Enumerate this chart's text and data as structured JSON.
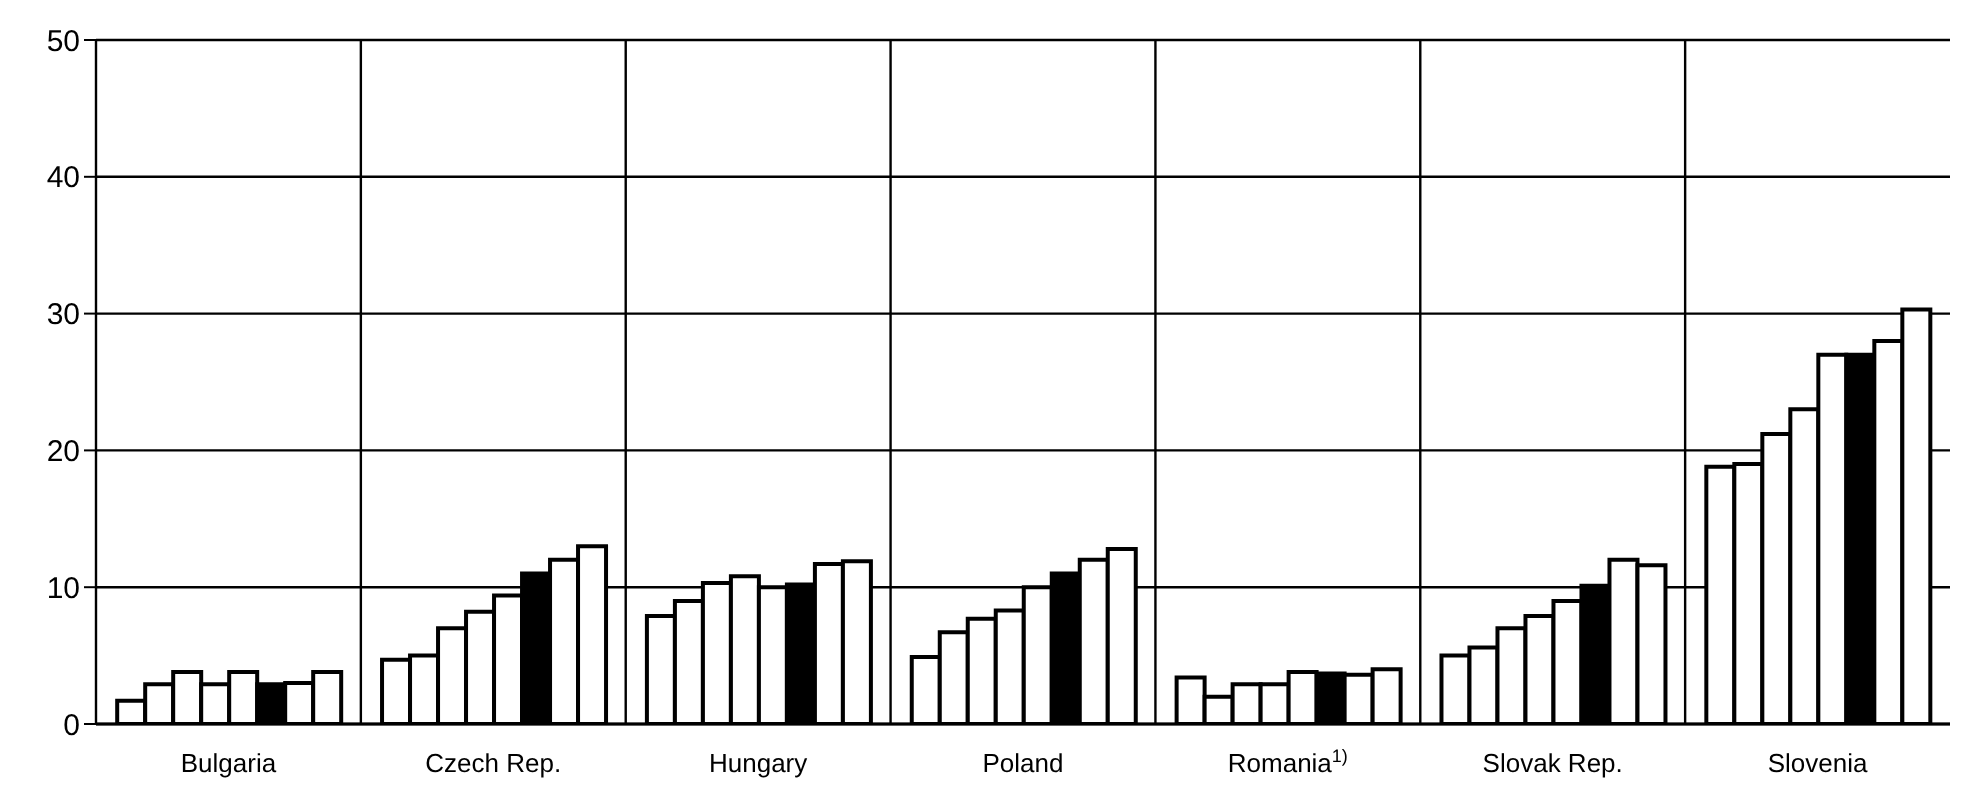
{
  "chart_data": {
    "type": "bar",
    "categories": [
      "Bulgaria",
      "Czech Rep.",
      "Hungary",
      "Poland",
      "Romania$^{1)}$",
      "Slovak Rep.",
      "Slovenia"
    ],
    "series": [
      {
        "color": "#ffffff",
        "values": [
          1.7,
          4.7,
          7.9,
          4.9,
          3.4,
          5.0,
          18.8
        ]
      },
      {
        "color": "#ffffff",
        "values": [
          2.9,
          5.0,
          9.0,
          6.7,
          2.0,
          5.6,
          19.0
        ]
      },
      {
        "color": "#ffffff",
        "values": [
          3.8,
          7.0,
          10.3,
          7.7,
          2.9,
          7.0,
          21.2
        ]
      },
      {
        "color": "#ffffff",
        "values": [
          2.9,
          8.2,
          10.8,
          8.3,
          2.9,
          7.9,
          23.0
        ]
      },
      {
        "color": "#ffffff",
        "values": [
          3.8,
          9.4,
          10.0,
          10.0,
          3.8,
          9.0,
          27.0
        ]
      },
      {
        "color": "#000000",
        "values": [
          2.9,
          11.0,
          10.2,
          11.0,
          3.7,
          10.1,
          27.0
        ]
      },
      {
        "color": "#ffffff",
        "values": [
          3.0,
          12.0,
          11.7,
          12.0,
          3.6,
          12.0,
          28.0
        ]
      },
      {
        "color": "#ffffff",
        "values": [
          3.8,
          13.0,
          11.9,
          12.8,
          4.0,
          11.6,
          30.3
        ]
      }
    ],
    "ylim": [
      0,
      50
    ],
    "yticks": [
      0,
      10,
      20,
      30,
      40,
      50
    ],
    "grid": true,
    "legend": false
  }
}
